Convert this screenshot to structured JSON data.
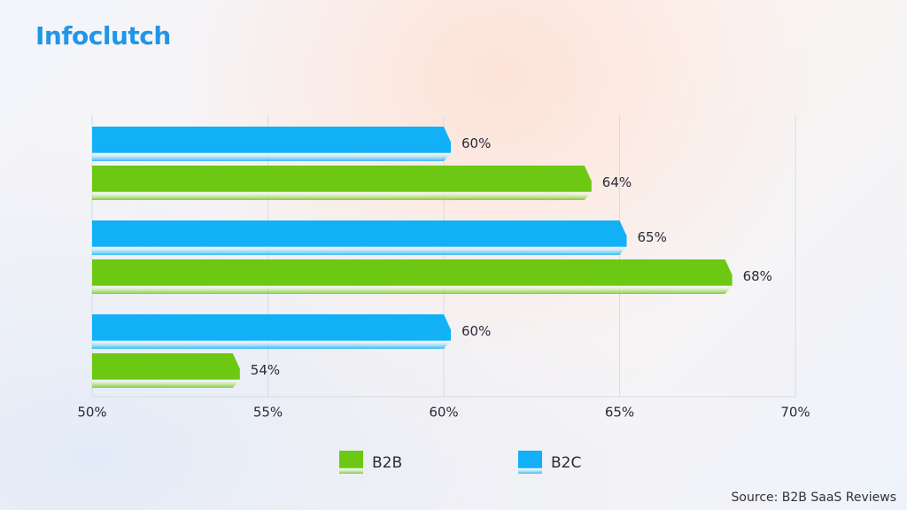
{
  "chart_data": {
    "type": "bar",
    "orientation": "horizontal",
    "logo": "Infoclutch",
    "source": "Source: B2B SaaS Reviews",
    "categories": [
      null,
      null,
      null
    ],
    "series": [
      {
        "name": "B2B",
        "color": "#6cc812",
        "values": [
          64,
          68,
          54
        ],
        "value_labels": [
          "64%",
          "68%",
          "54%"
        ]
      },
      {
        "name": "B2C",
        "color": "#12b0f7",
        "values": [
          60,
          65,
          60
        ],
        "value_labels": [
          "60%",
          "65%",
          "60%"
        ]
      }
    ],
    "xlim": [
      50,
      70
    ],
    "xticks": [
      {
        "value": 50,
        "label": "50%"
      },
      {
        "value": 55,
        "label": "55%"
      },
      {
        "value": 60,
        "label": "60%"
      },
      {
        "value": 65,
        "label": "65%"
      },
      {
        "value": 70,
        "label": "70%"
      }
    ],
    "grid": true
  }
}
